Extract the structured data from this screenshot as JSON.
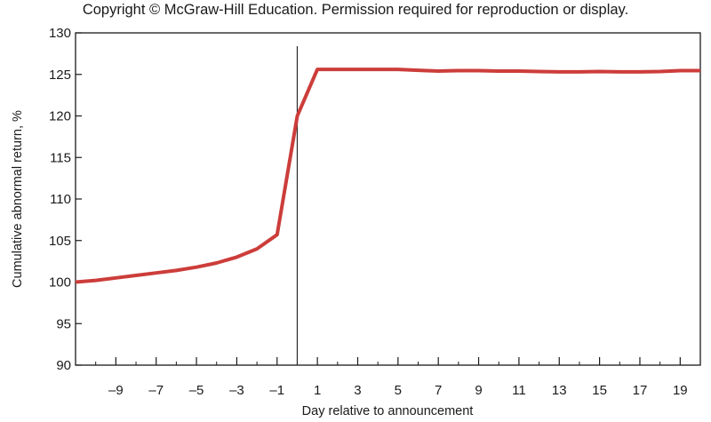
{
  "copyright": "Copyright © McGraw-Hill Education. Permission required for reproduction or display.",
  "chart_data": {
    "type": "line",
    "title": "",
    "xlabel": "Day relative to announcement",
    "ylabel": "Cumulative abnormal return, %",
    "xlim": [
      -11,
      20
    ],
    "ylim": [
      90,
      130
    ],
    "x_ticks": [
      -9,
      -7,
      -5,
      -3,
      -1,
      1,
      3,
      5,
      7,
      9,
      11,
      13,
      15,
      17,
      19
    ],
    "x_tick_labels": [
      "–9",
      "–7",
      "–5",
      "–3",
      "–1",
      "1",
      "3",
      "5",
      "7",
      "9",
      "11",
      "13",
      "15",
      "17",
      "19"
    ],
    "x_minor_ticks": [
      -10,
      -8,
      -6,
      -4,
      -2,
      0,
      2,
      4,
      6,
      8,
      10,
      12,
      14,
      16,
      18,
      20
    ],
    "y_ticks": [
      90,
      95,
      100,
      105,
      110,
      115,
      120,
      125,
      130
    ],
    "y_tick_labels": [
      "90",
      "95",
      "100",
      "105",
      "110",
      "115",
      "120",
      "125",
      "130"
    ],
    "grid": false,
    "legend": "none",
    "event_line_x": 0,
    "series": [
      {
        "color": "#cc3d3a",
        "x": [
          -11,
          -10,
          -9,
          -8,
          -7,
          -6,
          -5,
          -4,
          -3,
          -2,
          -1,
          0,
          1,
          2,
          3,
          4,
          5,
          6,
          7,
          8,
          9,
          10,
          11,
          12,
          13,
          14,
          15,
          16,
          17,
          18,
          19,
          20
        ],
        "y": [
          100,
          100.2,
          100.5,
          100.8,
          101.1,
          101.4,
          101.8,
          102.3,
          103,
          104,
          105.7,
          120,
          125.6,
          125.6,
          125.6,
          125.6,
          125.6,
          125.5,
          125.4,
          125.45,
          125.45,
          125.4,
          125.4,
          125.35,
          125.3,
          125.3,
          125.35,
          125.3,
          125.3,
          125.35,
          125.45,
          125.45
        ]
      }
    ]
  }
}
